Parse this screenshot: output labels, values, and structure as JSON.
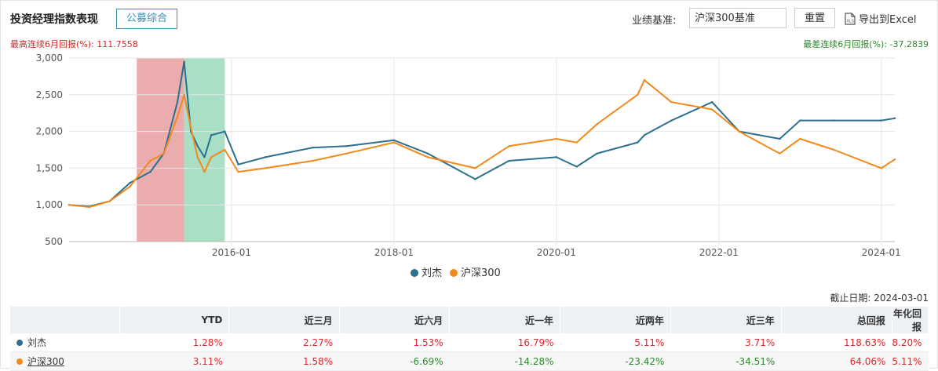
{
  "header": {
    "title": "投资经理指数表现",
    "tag_button": "公募综合",
    "bench_label": "业绩基准:",
    "bench_value": "沪深300基准",
    "reset_label": "重置",
    "export_label": "导出到Excel"
  },
  "stats": {
    "high_label": "最高连续6月回报(%):",
    "high_value": "111.7558",
    "low_label": "最差连续6月回报(%):",
    "low_value": "-37.2839"
  },
  "chart_data": {
    "type": "line",
    "y_ticks": [
      "3,000",
      "2,500",
      "2,000",
      "1,500",
      "1,000",
      "500"
    ],
    "ylim": [
      500,
      3000
    ],
    "x_ticks": [
      "2016-01",
      "2018-01",
      "2020-01",
      "2022-01",
      "2024-01"
    ],
    "xlim": [
      "2014-01",
      "2024-03"
    ],
    "highlight_regions": [
      {
        "start": "2014-11",
        "end": "2015-06",
        "color": "#e8a3a3",
        "meaning": "最高连续6月回报"
      },
      {
        "start": "2015-06",
        "end": "2015-12",
        "color": "#9fdcbf",
        "meaning": "最差连续6月回报"
      }
    ],
    "series": [
      {
        "name": "刘杰",
        "color": "#2c6f8f",
        "x": [
          "2014-01",
          "2014-04",
          "2014-07",
          "2014-10",
          "2015-01",
          "2015-03",
          "2015-05",
          "2015-06",
          "2015-07",
          "2015-08",
          "2015-09",
          "2015-10",
          "2015-12",
          "2016-02",
          "2016-06",
          "2017-01",
          "2017-06",
          "2018-01",
          "2018-06",
          "2019-01",
          "2019-06",
          "2020-01",
          "2020-04",
          "2020-07",
          "2021-01",
          "2021-02",
          "2021-06",
          "2021-12",
          "2022-04",
          "2022-10",
          "2023-01",
          "2023-06",
          "2024-01",
          "2024-03"
        ],
        "values": [
          1000,
          980,
          1050,
          1300,
          1450,
          1700,
          2400,
          2950,
          2000,
          1800,
          1650,
          1950,
          2000,
          1550,
          1650,
          1780,
          1800,
          1880,
          1700,
          1350,
          1600,
          1650,
          1520,
          1700,
          1850,
          1950,
          2150,
          2400,
          2000,
          1900,
          2150,
          2150,
          2150,
          2180
        ]
      },
      {
        "name": "沪深300",
        "color": "#f08a1c",
        "x": [
          "2014-01",
          "2014-04",
          "2014-07",
          "2014-10",
          "2015-01",
          "2015-03",
          "2015-05",
          "2015-06",
          "2015-07",
          "2015-08",
          "2015-09",
          "2015-10",
          "2015-12",
          "2016-02",
          "2016-06",
          "2017-01",
          "2017-06",
          "2018-01",
          "2018-06",
          "2019-01",
          "2019-06",
          "2020-01",
          "2020-04",
          "2020-07",
          "2021-01",
          "2021-02",
          "2021-06",
          "2021-12",
          "2022-04",
          "2022-10",
          "2023-01",
          "2023-06",
          "2024-01",
          "2024-03"
        ],
        "values": [
          1000,
          970,
          1050,
          1250,
          1600,
          1700,
          2200,
          2500,
          2050,
          1650,
          1450,
          1650,
          1750,
          1450,
          1500,
          1600,
          1700,
          1850,
          1650,
          1500,
          1800,
          1900,
          1850,
          2100,
          2500,
          2700,
          2400,
          2300,
          2000,
          1700,
          1900,
          1750,
          1500,
          1620
        ]
      }
    ]
  },
  "as_of": "截止日期: 2024-03-01",
  "table": {
    "headers": [
      "",
      "YTD",
      "近三月",
      "近六月",
      "近一年",
      "近两年",
      "近三年",
      "总回报",
      "年化回报"
    ],
    "rows": [
      {
        "name": "刘杰",
        "color": "#2c6f8f",
        "cells": [
          "1.28%",
          "2.27%",
          "1.53%",
          "16.79%",
          "5.11%",
          "3.71%",
          "118.63%",
          "8.20%"
        ]
      },
      {
        "name": "沪深300",
        "color": "#f08a1c",
        "cells": [
          "3.11%",
          "1.58%",
          "-6.69%",
          "-14.28%",
          "-23.42%",
          "-34.51%",
          "64.06%",
          "5.11%"
        ]
      }
    ]
  }
}
